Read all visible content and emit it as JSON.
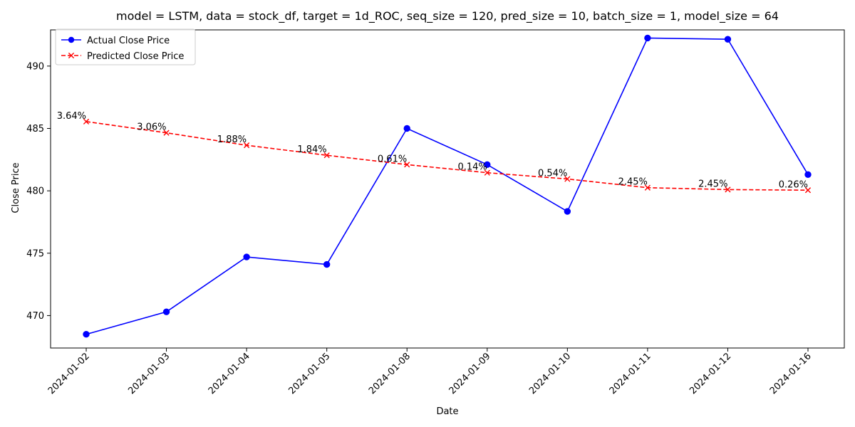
{
  "chart_data": {
    "type": "line",
    "title": "model = LSTM, data = stock_df, target = 1d_ROC, seq_size = 120, pred_size = 10, batch_size = 1, model_size = 64",
    "xlabel": "Date",
    "ylabel": "Close Price",
    "categories": [
      "2024-01-02",
      "2024-01-03",
      "2024-01-04",
      "2024-01-05",
      "2024-01-08",
      "2024-01-09",
      "2024-01-10",
      "2024-01-11",
      "2024-01-12",
      "2024-01-16"
    ],
    "ylim": [
      467.4,
      492.9
    ],
    "yticks": [
      470,
      475,
      480,
      485,
      490
    ],
    "grid": false,
    "legend_position": "top-left",
    "series": [
      {
        "name": "Actual Close Price",
        "color": "#0000ff",
        "line_style": "solid",
        "marker": "circle",
        "values": [
          468.5,
          470.3,
          474.7,
          474.1,
          485.0,
          482.1,
          478.35,
          492.25,
          492.15,
          481.3
        ]
      },
      {
        "name": "Predicted Close Price",
        "color": "#ff0000",
        "line_style": "dashed",
        "marker": "x",
        "values": [
          485.55,
          484.65,
          483.65,
          482.85,
          482.1,
          481.45,
          480.95,
          480.25,
          480.1,
          480.05
        ]
      }
    ],
    "annotations": [
      "3.64%",
      "3.06%",
      "1.88%",
      "1.84%",
      "0.61%",
      "0.14%",
      "0.54%",
      "2.45%",
      "2.45%",
      "0.26%"
    ]
  }
}
